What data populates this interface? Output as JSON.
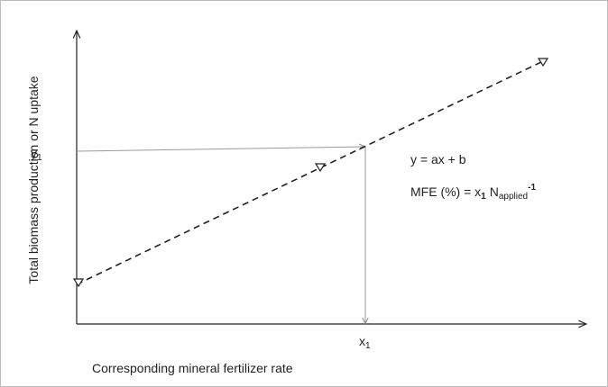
{
  "axis_labels": {
    "y": "Total biomass production or N uptake",
    "x": "Corresponding mineral fertilizer rate"
  },
  "markers": {
    "y": {
      "base": "y",
      "subscript": "1"
    },
    "x": {
      "base": "x",
      "subscript": "1"
    }
  },
  "equations": {
    "line": "y = ax + b",
    "mfe": {
      "lhs": "MFE (%) = x",
      "x_subscript": "1",
      "n": "N",
      "n_subscript": "applied",
      "n_superscript": "-1"
    }
  }
}
